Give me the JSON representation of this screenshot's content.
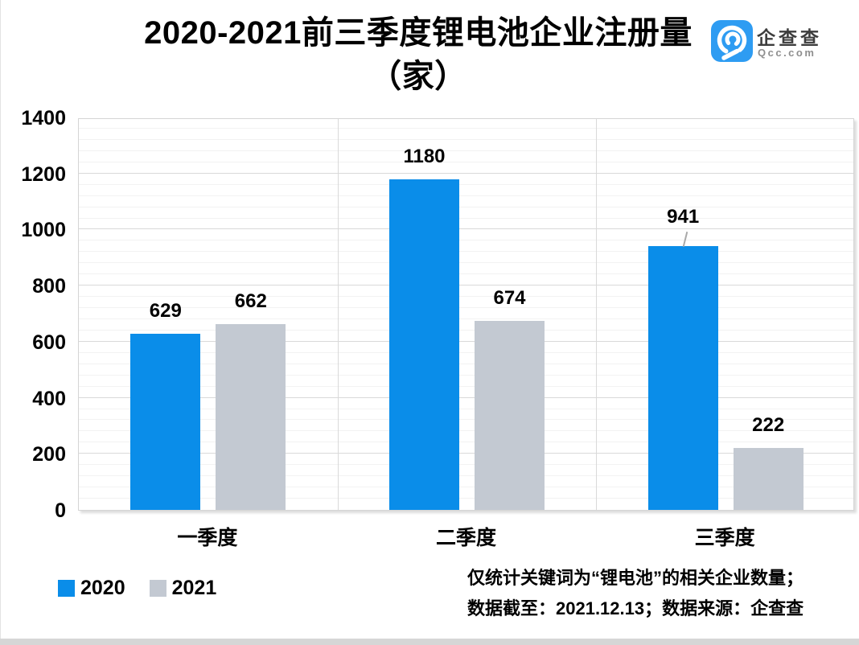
{
  "title": {
    "line1": "2020-2021前三季度锂电池企业注册量",
    "line2": "（家）"
  },
  "logo": {
    "name": "企查查",
    "domain": "Qcc.com",
    "brand_color": "#2e9cf2"
  },
  "footer": {
    "line1": "仅统计关键词为“锂电池”的相关企业数量；",
    "line2": "数据截至：2021.12.13；数据来源：企查查"
  },
  "chart_data": {
    "type": "bar",
    "title": "2020-2021前三季度锂电池企业注册量（家）",
    "categories": [
      "一季度",
      "二季度",
      "三季度"
    ],
    "series": [
      {
        "name": "2020",
        "color": "#0a8de9",
        "values": [
          629,
          1180,
          941
        ]
      },
      {
        "name": "2021",
        "color": "#c3c9d2",
        "values": [
          662,
          674,
          222
        ]
      }
    ],
    "ylim": [
      0,
      1400
    ],
    "y_major_ticks": [
      0,
      200,
      400,
      600,
      800,
      1000,
      1200,
      1400
    ],
    "y_minor_step": 40,
    "grid": true,
    "data_labels": true,
    "raised_label": {
      "series_index": 0,
      "value_index": 2,
      "leader_line": true
    },
    "legend_position": "bottom-left",
    "grid_major_color": "#d9d9d9",
    "grid_minor_color": "#f2f2f2"
  }
}
